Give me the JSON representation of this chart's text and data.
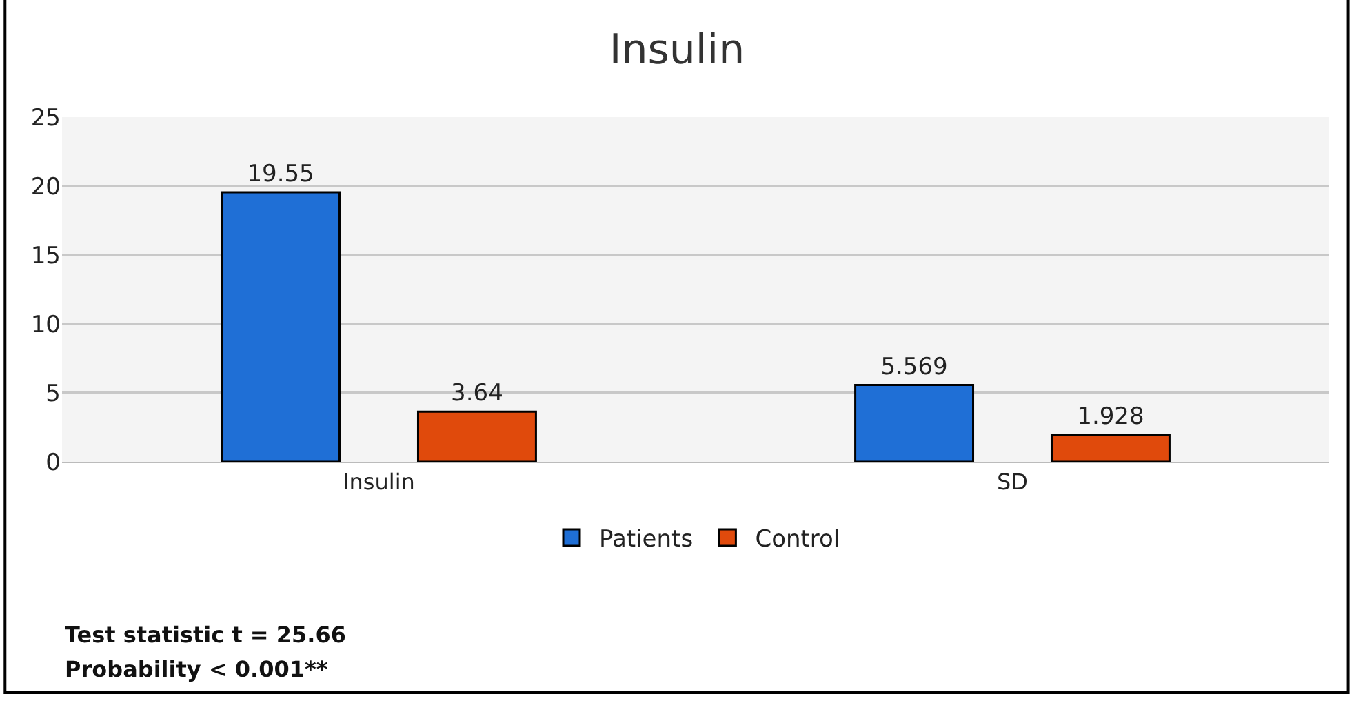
{
  "chart_data": {
    "type": "bar",
    "title": "Insulin",
    "categories": [
      "Insulin",
      "SD"
    ],
    "series": [
      {
        "name": "Patients",
        "color": "#1f6fd6",
        "values": [
          19.55,
          5.569
        ]
      },
      {
        "name": "Control",
        "color": "#e04a0c",
        "values": [
          3.64,
          1.928
        ]
      }
    ],
    "ylim": [
      0,
      25
    ],
    "yticks": [
      0,
      5,
      10,
      15,
      20,
      25
    ],
    "grid": "y",
    "legend": "bottom",
    "data_labels": true,
    "annotations": [
      "Test statistic t = 25.66",
      "Probability < 0.001**"
    ]
  }
}
